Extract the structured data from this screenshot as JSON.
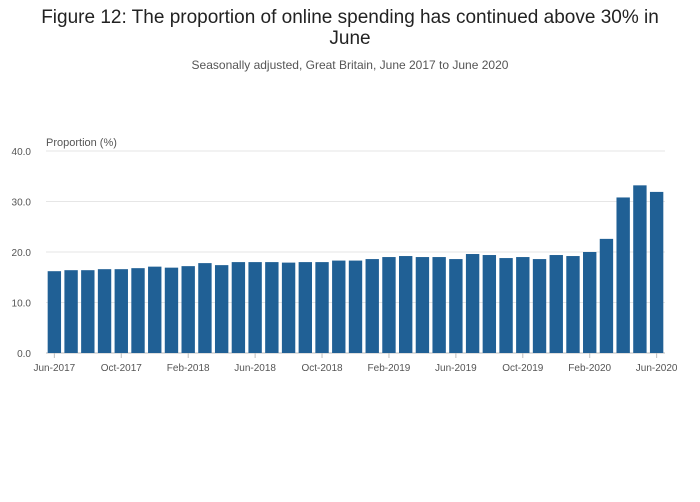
{
  "chart_data": {
    "type": "bar",
    "title": "Figure 12: The proportion of online spending has continued above 30% in June",
    "subtitle": "Seasonally adjusted, Great Britain, June 2017 to June 2020",
    "ylabel": "Proportion (%)",
    "xlabel": "",
    "ylim": [
      0,
      40
    ],
    "yticks": [
      "0.0",
      "10.0",
      "20.0",
      "30.0",
      "40.0"
    ],
    "grid": true,
    "bar_color": "#206095",
    "categories": [
      "Jun-2017",
      "Jul-2017",
      "Aug-2017",
      "Sep-2017",
      "Oct-2017",
      "Nov-2017",
      "Dec-2017",
      "Jan-2018",
      "Feb-2018",
      "Mar-2018",
      "Apr-2018",
      "May-2018",
      "Jun-2018",
      "Jul-2018",
      "Aug-2018",
      "Sep-2018",
      "Oct-2018",
      "Nov-2018",
      "Dec-2018",
      "Jan-2019",
      "Feb-2019",
      "Mar-2019",
      "Apr-2019",
      "May-2019",
      "Jun-2019",
      "Jul-2019",
      "Aug-2019",
      "Sep-2019",
      "Oct-2019",
      "Nov-2019",
      "Dec-2019",
      "Jan-2020",
      "Feb-2020",
      "Mar-2020",
      "Apr-2020",
      "May-2020",
      "Jun-2020"
    ],
    "values": [
      16.2,
      16.4,
      16.4,
      16.6,
      16.6,
      16.8,
      17.1,
      16.9,
      17.2,
      17.8,
      17.4,
      18.0,
      18.0,
      18.0,
      17.9,
      18.0,
      18.0,
      18.3,
      18.3,
      18.6,
      19.0,
      19.2,
      19.0,
      19.0,
      18.6,
      19.6,
      19.4,
      18.8,
      19.0,
      18.6,
      19.4,
      19.2,
      20.0,
      22.6,
      30.8,
      33.2,
      31.9
    ],
    "tick_labels": [
      {
        "index": 0,
        "label": "Jun-2017"
      },
      {
        "index": 4,
        "label": "Oct-2017"
      },
      {
        "index": 8,
        "label": "Feb-2018"
      },
      {
        "index": 12,
        "label": "Jun-2018"
      },
      {
        "index": 16,
        "label": "Oct-2018"
      },
      {
        "index": 20,
        "label": "Feb-2019"
      },
      {
        "index": 24,
        "label": "Jun-2019"
      },
      {
        "index": 28,
        "label": "Oct-2019"
      },
      {
        "index": 32,
        "label": "Feb-2020"
      },
      {
        "index": 36,
        "label": "Jun-2020"
      }
    ]
  }
}
